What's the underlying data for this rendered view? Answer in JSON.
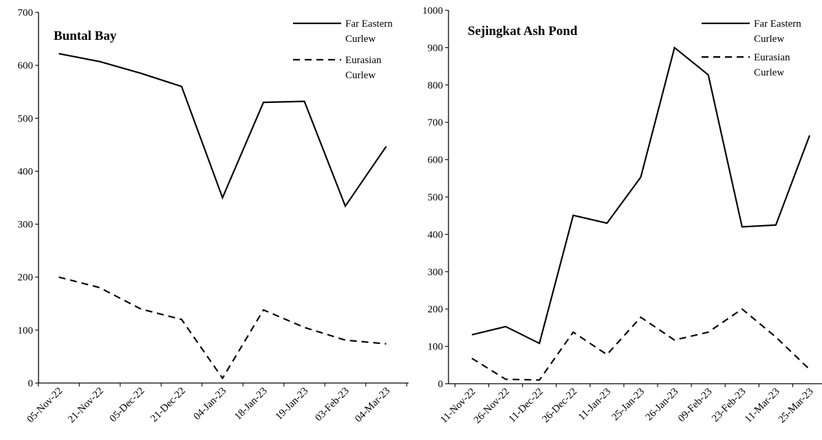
{
  "chart_data": [
    {
      "type": "line",
      "title": "Buntal Bay",
      "categories": [
        "05-Nov-22",
        "21-Nov-22",
        "05-Dec-22",
        "21-Dec-22",
        "04-Jan-23",
        "18-Jan-23",
        "19-Jan-23",
        "03-Feb-23",
        "04-Mar-23"
      ],
      "ylim": [
        0,
        700
      ],
      "yticks": [
        0,
        100,
        200,
        300,
        400,
        500,
        600,
        700
      ],
      "grid": false,
      "legend_position": "top-right",
      "series": [
        {
          "name": "Far Eastern Curlew",
          "legend_lines": [
            "Far Eastern",
            "Curlew"
          ],
          "dashed": false,
          "values": [
            622,
            607,
            585,
            560,
            350,
            530,
            532,
            334,
            447
          ]
        },
        {
          "name": "Eurasian Curlew",
          "legend_lines": [
            "Eurasian",
            "Curlew"
          ],
          "dashed": true,
          "values": [
            200,
            180,
            140,
            120,
            9,
            138,
            105,
            81,
            74
          ]
        }
      ]
    },
    {
      "type": "line",
      "title": "Sejingkat Ash Pond",
      "categories": [
        "11-Nov-22",
        "26-Nov-22",
        "11-Dec-22",
        "26-Dec-22",
        "11-Jan-23",
        "25-Jan-23",
        "26-Jan-23",
        "09-Feb-23",
        "23-Feb-23",
        "11-Mar-23",
        "25-Mar-23"
      ],
      "ylim": [
        0,
        1000
      ],
      "yticks": [
        0,
        100,
        200,
        300,
        400,
        500,
        600,
        700,
        800,
        900,
        1000
      ],
      "grid": false,
      "legend_position": "top-right",
      "series": [
        {
          "name": "Far Eastern Curlew",
          "legend_lines": [
            "Far Eastern",
            "Curlew"
          ],
          "dashed": false,
          "values": [
            131,
            153,
            108,
            451,
            430,
            553,
            900,
            827,
            420,
            425,
            665
          ]
        },
        {
          "name": "Eurasian Curlew",
          "legend_lines": [
            "Eurasian",
            "Curlew"
          ],
          "dashed": true,
          "values": [
            68,
            12,
            10,
            138,
            78,
            178,
            117,
            138,
            200,
            125,
            38
          ]
        }
      ]
    }
  ]
}
